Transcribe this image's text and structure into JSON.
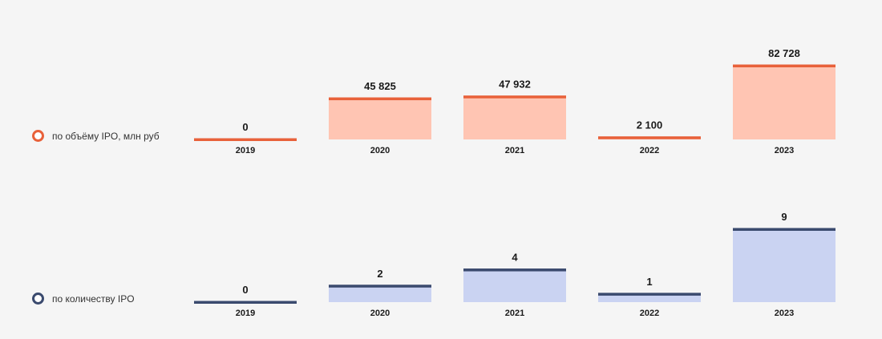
{
  "chart_data": [
    {
      "type": "bar",
      "categories": [
        "2019",
        "2020",
        "2021",
        "2022",
        "2023"
      ],
      "values": [
        0,
        45825,
        47932,
        2100,
        82728
      ],
      "value_labels": [
        "0",
        "45 825",
        "47 932",
        "2 100",
        "82 728"
      ],
      "legend": "по объёму IPO, млн руб",
      "colors": {
        "fill": "#ffc5b3",
        "line": "#e8613a"
      },
      "title": "",
      "xlabel": "",
      "ylabel": "",
      "ylim": [
        0,
        82728
      ],
      "grid": false,
      "legend_placement": "left"
    },
    {
      "type": "bar",
      "categories": [
        "2019",
        "2020",
        "2021",
        "2022",
        "2023"
      ],
      "values": [
        0,
        2,
        4,
        1,
        9
      ],
      "value_labels": [
        "0",
        "2",
        "4",
        "1",
        "9"
      ],
      "legend": "по количеству IPO",
      "colors": {
        "fill": "#cad3f2",
        "line": "#3a4a6e"
      },
      "title": "",
      "xlabel": "",
      "ylabel": "",
      "ylim": [
        0,
        9
      ],
      "grid": false,
      "legend_placement": "left"
    }
  ]
}
